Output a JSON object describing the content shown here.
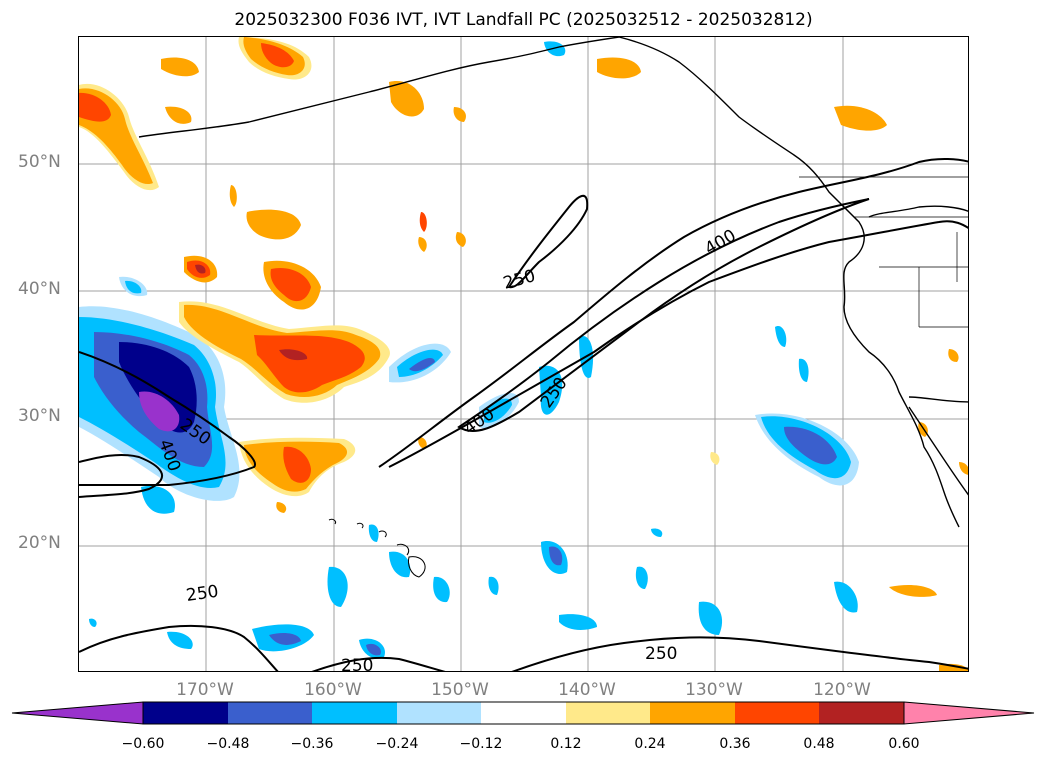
{
  "title": "2025032300 F036 IVT, IVT Landfall PC (2025032512 - 2025032812)",
  "lat_labels": [
    "50°N",
    "40°N",
    "30°N",
    "20°N"
  ],
  "lon_labels": [
    "170°W",
    "160°W",
    "150°W",
    "140°W",
    "130°W",
    "120°W"
  ],
  "contour_labels": [
    "250",
    "400",
    "400",
    "250",
    "250",
    "400",
    "250",
    "250",
    "250"
  ],
  "colorbar": {
    "ticks": [
      "−0.60",
      "−0.48",
      "−0.36",
      "−0.24",
      "−0.12",
      "0.12",
      "0.24",
      "0.36",
      "0.48",
      "0.60"
    ],
    "colors": [
      "#9932cc",
      "#00008b",
      "#3a5fcd",
      "#00bfff",
      "#b0e2ff",
      "#ffffff",
      "#ffe98a",
      "#ffa500",
      "#ff4500",
      "#b22222",
      "#ff82ab"
    ]
  }
}
